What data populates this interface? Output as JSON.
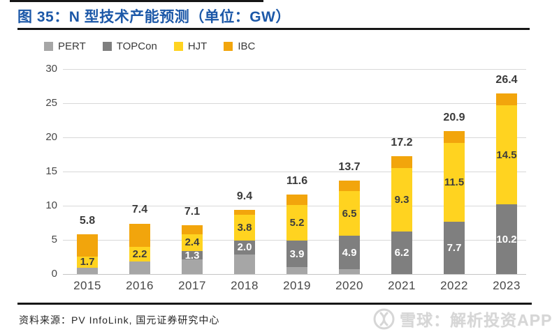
{
  "page": {
    "title": "图 35：N 型技术产能预测（单位：GW）",
    "source_note": "资料来源：PV InfoLink, 国元证券研究中心",
    "watermark": {
      "logo_icon": "snowball-icon",
      "brand": "雪球：解析投资APP"
    }
  },
  "colors": {
    "title_blue": "#1C58A8",
    "rule_black": "#161616",
    "gridline": "#D8D8D8",
    "axis_text": "#474747",
    "total_label": "#3A3A3A",
    "watermark_gray": "#D6D6D6"
  },
  "chart_data": {
    "type": "bar",
    "stacked": true,
    "title": "图 35：N 型技术产能预测（单位：GW）",
    "unit": "GW",
    "categories": [
      "2015",
      "2016",
      "2017",
      "2018",
      "2019",
      "2020",
      "2021",
      "2022",
      "2023"
    ],
    "series": [
      {
        "name": "PERT",
        "color": "#A6A6A6",
        "values": [
          0.9,
          1.8,
          2.1,
          2.9,
          1.0,
          0.7,
          0,
          0,
          0
        ],
        "show_labels": false,
        "label_color": null
      },
      {
        "name": "TOPCon",
        "color": "#7F7F7F",
        "values": [
          0,
          0,
          1.3,
          2.0,
          3.9,
          4.9,
          6.2,
          7.7,
          10.2
        ],
        "show_labels": true,
        "label_color": "#FFFFFF"
      },
      {
        "name": "HJT",
        "color": "#FFD320",
        "values": [
          1.7,
          2.2,
          2.4,
          3.8,
          5.2,
          6.5,
          9.3,
          11.5,
          14.5
        ],
        "show_labels": true,
        "label_color": "#3D3D3D"
      },
      {
        "name": "IBC",
        "color": "#F2A50C",
        "values": [
          3.2,
          3.4,
          1.3,
          0.7,
          1.5,
          1.6,
          1.7,
          1.7,
          1.7
        ],
        "show_labels": false,
        "label_color": null
      }
    ],
    "totals": [
      "5.8",
      "7.4",
      "7.1",
      "9.4",
      "11.6",
      "13.7",
      "17.2",
      "20.9",
      "26.4"
    ],
    "ylim": [
      0,
      30
    ],
    "ytick_step": 5,
    "yticks": [
      "30",
      "25",
      "20",
      "15",
      "10",
      "5",
      "0"
    ],
    "grid": true,
    "legend_position": "top-left",
    "legend": [
      "PERT",
      "TOPCon",
      "HJT",
      "IBC"
    ]
  }
}
